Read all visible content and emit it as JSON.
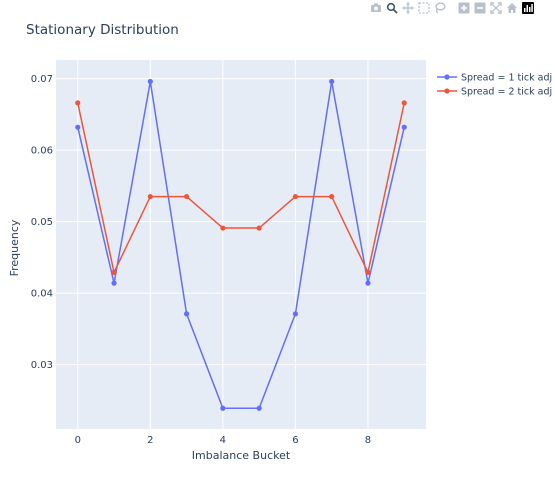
{
  "chart_data": {
    "type": "line",
    "title": "Stationary Distribution",
    "xlabel": "Imbalance Bucket",
    "ylabel": "Frequency",
    "x": [
      0,
      1,
      2,
      3,
      4,
      5,
      6,
      7,
      8,
      9
    ],
    "xlim": [
      -0.6,
      9.6
    ],
    "ylim": [
      0.021,
      0.0726
    ],
    "xticks": [
      0,
      2,
      4,
      6,
      8
    ],
    "yticks": [
      0.03,
      0.04,
      0.05,
      0.06,
      0.07
    ],
    "grid": true,
    "legend_position": "top-right",
    "series": [
      {
        "name": "Spread = 1 tick adj",
        "color": "#636efa",
        "values": [
          0.0632,
          0.0414,
          0.0696,
          0.0371,
          0.0239,
          0.0239,
          0.0371,
          0.0696,
          0.0414,
          0.0632
        ]
      },
      {
        "name": "Spread = 2 tick adj",
        "color": "#ef553b",
        "values": [
          0.0666,
          0.0429,
          0.0535,
          0.0535,
          0.0491,
          0.0491,
          0.0535,
          0.0535,
          0.0429,
          0.0666
        ]
      }
    ]
  },
  "modebar": {
    "icons": [
      "camera-icon",
      "zoom-icon",
      "pan-icon",
      "box-select-icon",
      "lasso-icon",
      "zoom-in-icon",
      "zoom-out-icon",
      "autoscale-icon",
      "home-icon",
      "plotly-logo-icon"
    ]
  },
  "colors": {
    "plot_bg": "#e5ecf6",
    "grid": "#ffffff",
    "text": "#2a3f5f",
    "modebar_icon": "#b7c0cc"
  }
}
